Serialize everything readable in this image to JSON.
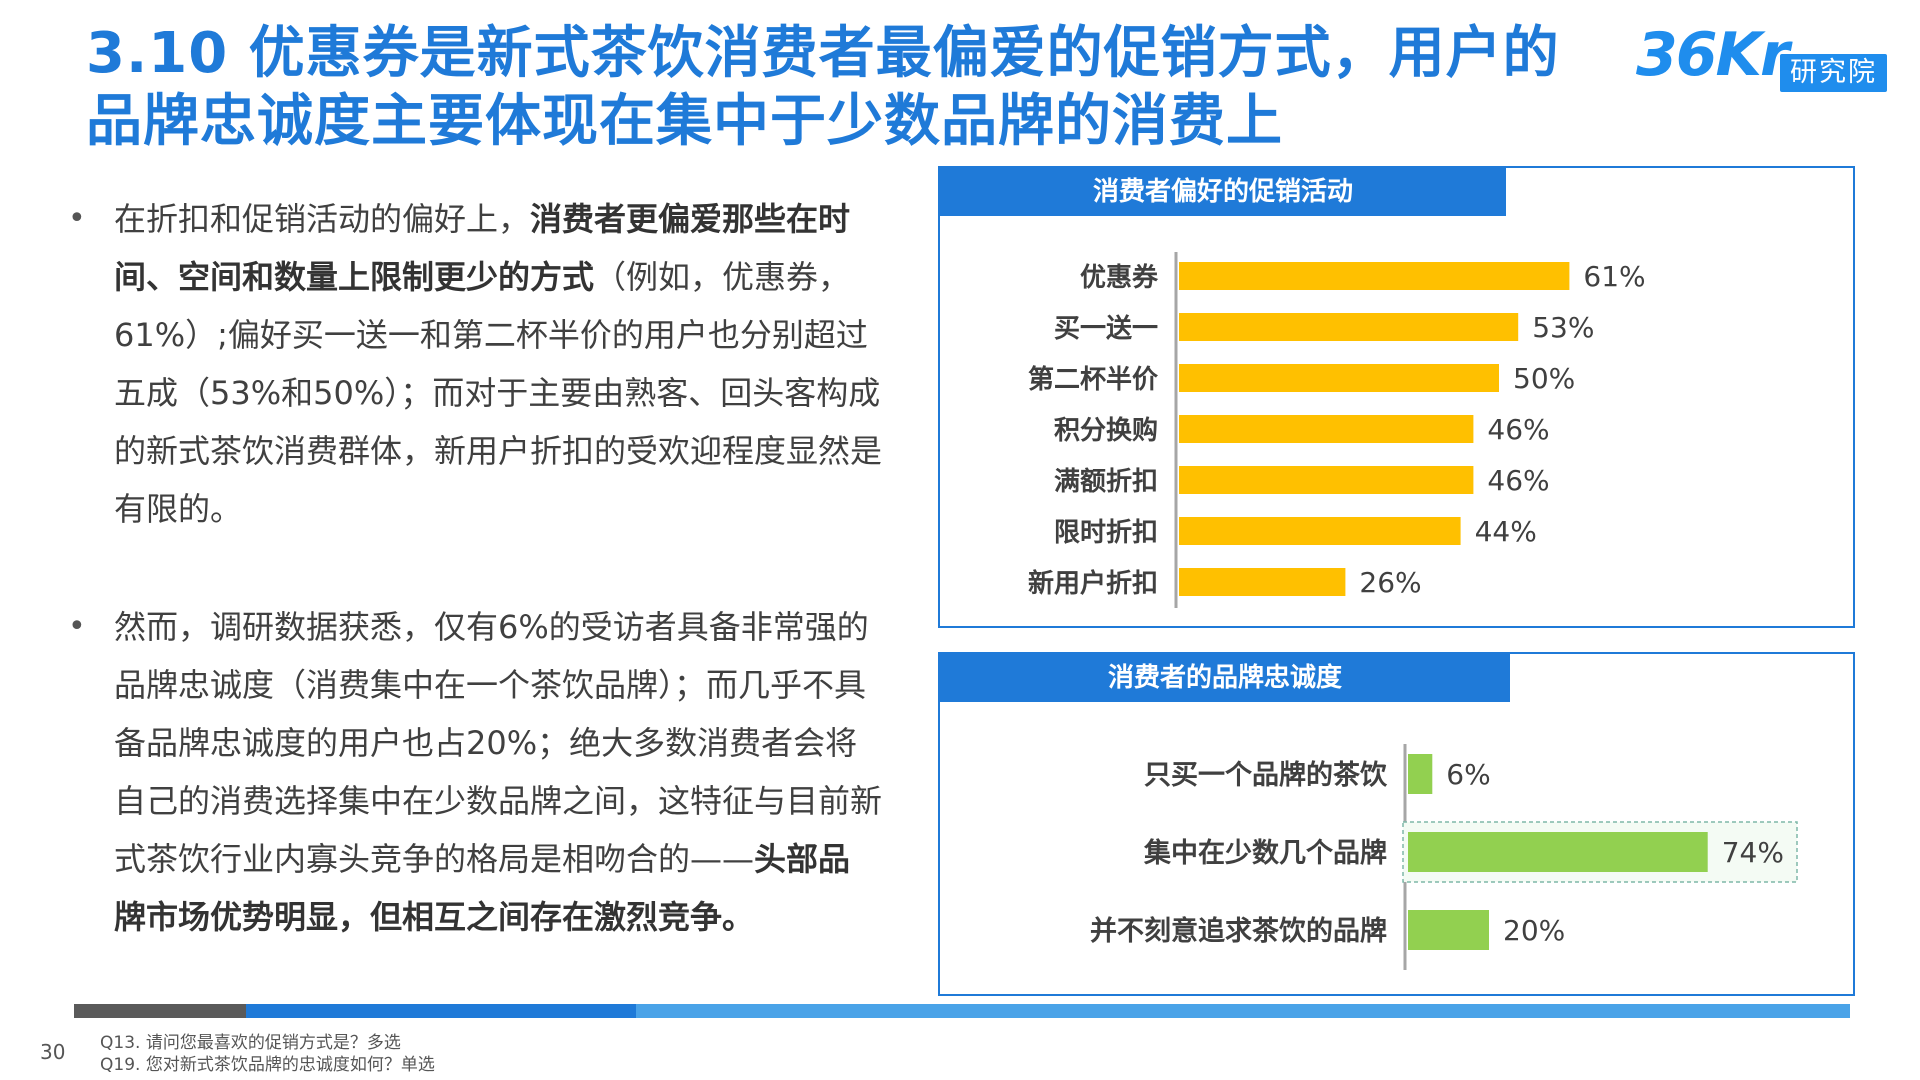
{
  "title": "3.10 优惠券是新式茶饮消费者最偏爱的促销方式，用户的品牌忠诚度主要体现在集中于少数品牌的消费上",
  "logo": {
    "mark": "36Kr",
    "badge": "研究院"
  },
  "bullets": [
    {
      "bullet_icon": "•",
      "parts": [
        {
          "text": "在折扣和促销活动的偏好上，",
          "bold": false
        },
        {
          "text": "消费者更偏爱那些在时间、空间和数量上限制更少的方式",
          "bold": true
        },
        {
          "text": "（例如，优惠券，61%）;偏好买一送一和第二杯半价的用户也分别超过五成（53%和50%）；而对于主要由熟客、回头客构成的新式茶饮消费群体，新用户折扣的受欢迎程度显然是有限的。",
          "bold": false
        }
      ]
    },
    {
      "bullet_icon": "•",
      "parts": [
        {
          "text": "然而，调研数据获悉，仅有6%的受访者具备非常强的品牌忠诚度（消费集中在一个茶饮品牌）；而几乎不具备品牌忠诚度的用户也占20%；绝大多数消费者会将自己的消费选择集中在少数品牌之间，这特征与目前新式茶饮行业内寡头竞争的格局是相吻合的——",
          "bold": false
        },
        {
          "text": "头部品牌市场优势明显，但相互之间存在激烈竞争。",
          "bold": true
        }
      ]
    }
  ],
  "chart_data": [
    {
      "type": "bar",
      "orientation": "horizontal",
      "title": "消费者偏好的促销活动",
      "categories": [
        "优惠券",
        "买一送一",
        "第二杯半价",
        "积分换购",
        "满额折扣",
        "限时折扣",
        "新用户折扣"
      ],
      "values": [
        61,
        53,
        50,
        46,
        46,
        44,
        26
      ],
      "value_labels": [
        "61%",
        "53%",
        "50%",
        "46%",
        "46%",
        "44%",
        "26%"
      ],
      "unit": "%",
      "xlim": [
        0,
        100
      ],
      "color": "#ffc000"
    },
    {
      "type": "bar",
      "orientation": "horizontal",
      "title": "消费者的品牌忠诚度",
      "categories": [
        "只买一个品牌的茶饮",
        "集中在少数几个品牌",
        "并不刻意追求茶饮的品牌"
      ],
      "values": [
        6,
        74,
        20
      ],
      "value_labels": [
        "6%",
        "74%",
        "20%"
      ],
      "unit": "%",
      "xlim": [
        0,
        100
      ],
      "highlight": "集中在少数几个品牌",
      "color": "#92d050"
    }
  ],
  "page_number": "30",
  "footnotes": [
    "Q13. 请问您最喜欢的促销方式是？多选",
    "Q19. 您对新式茶饮品牌的忠诚度如何？单选"
  ],
  "colors": {
    "accent": "#1f7ad8",
    "bar1": "#ffc000",
    "bar2": "#92d050",
    "bottom_bar": [
      "#5a5a5a",
      "#1f7ad8",
      "#4aa3e8"
    ]
  }
}
